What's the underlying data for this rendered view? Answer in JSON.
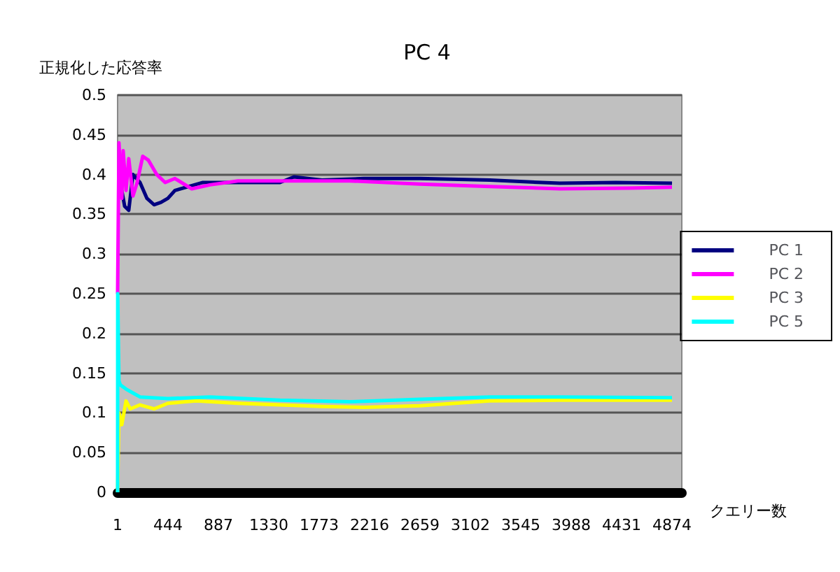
{
  "chart_data": {
    "type": "line",
    "title": "PC 4",
    "xlabel": "クエリー数",
    "ylabel": "正規化した応答率",
    "xlim": [
      1,
      4960
    ],
    "xticks": [
      1,
      444,
      887,
      1330,
      1773,
      2216,
      2659,
      3102,
      3545,
      3988,
      4431,
      4874
    ],
    "ylim": [
      0,
      0.5
    ],
    "yticks": [
      0,
      0.05,
      0.1,
      0.15,
      0.2,
      0.25,
      0.3,
      0.35,
      0.4,
      0.45,
      0.5
    ],
    "grid": "y",
    "legend": "right",
    "marker": "none",
    "line_style": "solid",
    "series": [
      {
        "name": "PC 1",
        "color": "#000080",
        "x": [
          38,
          63,
          99,
          136,
          198,
          259,
          321,
          382,
          443,
          505,
          628,
          751,
          936,
          1182,
          1428,
          1551,
          1797,
          2166,
          2658,
          3273,
          3888,
          4380,
          4874
        ],
        "values": [
          0.38,
          0.36,
          0.355,
          0.4,
          0.39,
          0.37,
          0.362,
          0.365,
          0.37,
          0.38,
          0.385,
          0.39,
          0.39,
          0.39,
          0.39,
          0.397,
          0.393,
          0.395,
          0.395,
          0.393,
          0.389,
          0.39,
          0.389
        ]
      },
      {
        "name": "PC 2",
        "color": "#ff00ff",
        "x": [
          1,
          13,
          38,
          50,
          75,
          99,
          136,
          173,
          222,
          272,
          345,
          419,
          505,
          653,
          813,
          1059,
          1428,
          2043,
          2658,
          3273,
          3888,
          4503,
          4874
        ],
        "values": [
          0.25,
          0.44,
          0.37,
          0.43,
          0.38,
          0.42,
          0.373,
          0.39,
          0.423,
          0.418,
          0.4,
          0.39,
          0.395,
          0.382,
          0.387,
          0.392,
          0.392,
          0.392,
          0.388,
          0.385,
          0.382,
          0.383,
          0.384
        ]
      },
      {
        "name": "PC 3",
        "color": "#ffff00",
        "x": [
          1,
          13,
          38,
          75,
          112,
          198,
          321,
          443,
          690,
          1059,
          1428,
          1797,
          2166,
          2658,
          3273,
          3888,
          4874
        ],
        "values": [
          0,
          0.1,
          0.085,
          0.115,
          0.105,
          0.11,
          0.105,
          0.112,
          0.115,
          0.112,
          0.11,
          0.108,
          0.107,
          0.109,
          0.115,
          0.116,
          0.116
        ]
      },
      {
        "name": "PC 5",
        "color": "#00ffff",
        "x": [
          1,
          2,
          13,
          26,
          75,
          136,
          198,
          443,
          813,
          1428,
          2043,
          2658,
          3273,
          3888,
          4874
        ],
        "values": [
          0,
          0.25,
          0.14,
          0.135,
          0.13,
          0.125,
          0.12,
          0.118,
          0.12,
          0.116,
          0.114,
          0.117,
          0.12,
          0.12,
          0.119
        ]
      }
    ]
  }
}
